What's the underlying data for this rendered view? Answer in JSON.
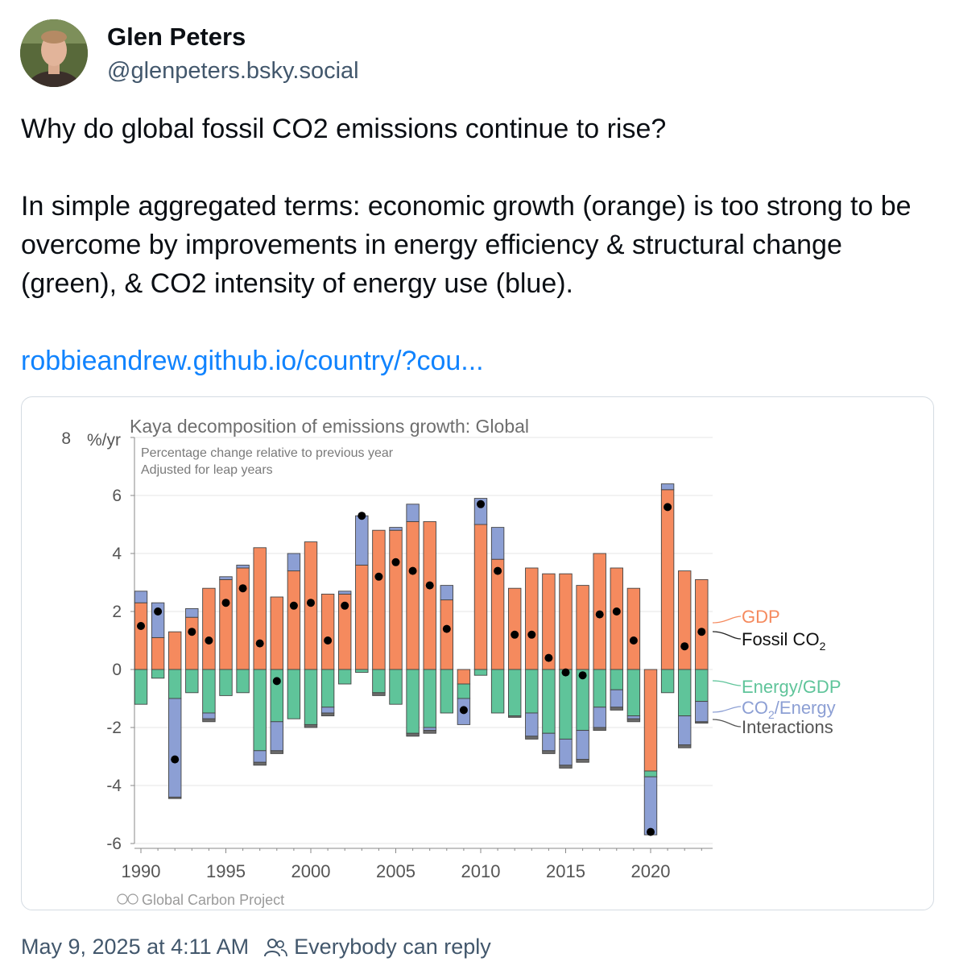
{
  "post": {
    "author": {
      "name": "Glen Peters",
      "handle": "@glenpeters.bsky.social"
    },
    "text_line1": "Why do global fossil CO2 emissions continue to rise?",
    "text_line2": "In simple aggregated terms: economic growth (orange) is too strong to be overcome by improvements in energy efficiency & structural change (green), & CO2 intensity of energy use (blue).",
    "link": "robbieandrew.github.io/country/?cou...",
    "timestamp": "May 9, 2025 at 4:11 AM",
    "reply_setting": "Everybody can reply"
  },
  "colors": {
    "gdp": "#f58a5e",
    "energy_gdp": "#5fc49a",
    "co2_energy": "#8c9fd4",
    "interactions": "#6b6b6b",
    "fossil": "#000000",
    "link": "#1083fe"
  },
  "chart_data": {
    "type": "bar",
    "title": "Kaya decomposition of emissions growth: Global",
    "subtitle1": "Percentage change relative to previous year",
    "subtitle2": "Adjusted for leap years",
    "ylabel": "%/yr",
    "ylim": [
      -6,
      8
    ],
    "yticks": [
      -6,
      -4,
      -2,
      0,
      2,
      4,
      6,
      8
    ],
    "xticks": [
      1990,
      1995,
      2000,
      2005,
      2010,
      2015,
      2020
    ],
    "credit": "Global Carbon Project",
    "legend": {
      "gdp": "GDP",
      "fossil": "Fossil CO",
      "energy_gdp": "Energy/GDP",
      "co2_energy_a": "CO",
      "co2_energy_b": "/Energy",
      "interactions": "Interactions",
      "sub2": "2"
    },
    "years": [
      1990,
      1991,
      1992,
      1993,
      1994,
      1995,
      1996,
      1997,
      1998,
      1999,
      2000,
      2001,
      2002,
      2003,
      2004,
      2005,
      2006,
      2007,
      2008,
      2009,
      2010,
      2011,
      2012,
      2013,
      2014,
      2015,
      2016,
      2017,
      2018,
      2019,
      2020,
      2021,
      2022,
      2023
    ],
    "series": [
      {
        "name": "GDP",
        "values": [
          2.3,
          1.1,
          1.3,
          1.8,
          2.8,
          3.1,
          3.5,
          4.2,
          2.5,
          3.4,
          4.4,
          2.6,
          2.6,
          3.6,
          4.8,
          4.8,
          5.1,
          5.1,
          2.4,
          -0.5,
          5.0,
          3.8,
          2.8,
          3.5,
          3.3,
          3.3,
          2.9,
          4.0,
          3.5,
          2.8,
          -3.5,
          6.2,
          3.4,
          3.1
        ]
      },
      {
        "name": "Energy/GDP",
        "values": [
          -1.2,
          -0.3,
          -1.0,
          -0.8,
          -1.5,
          -0.9,
          -0.8,
          -2.8,
          -1.8,
          -1.7,
          -1.9,
          -1.3,
          -0.5,
          -0.1,
          -0.8,
          -1.2,
          -2.2,
          -2.0,
          -1.5,
          -0.5,
          -0.2,
          -1.5,
          -1.6,
          -1.5,
          -2.2,
          -2.4,
          -2.1,
          -1.3,
          -0.7,
          -1.6,
          -0.2,
          -0.8,
          -1.6,
          -1.1
        ]
      },
      {
        "name": "CO2/Energy",
        "values": [
          0.4,
          1.2,
          -3.4,
          0.3,
          -0.2,
          0.1,
          0.1,
          -0.4,
          -1.0,
          0.6,
          0.0,
          -0.2,
          0.1,
          1.7,
          0.0,
          0.1,
          0.6,
          -0.1,
          0.5,
          -0.9,
          0.9,
          1.1,
          0.0,
          -0.8,
          -0.6,
          -0.9,
          -1.0,
          -0.7,
          -0.6,
          -0.1,
          -2.0,
          0.2,
          -1.0,
          -0.7
        ]
      },
      {
        "name": "Interactions",
        "values": [
          0.0,
          0.0,
          -0.05,
          0.0,
          -0.1,
          0.0,
          0.0,
          -0.1,
          -0.1,
          0.0,
          -0.1,
          -0.1,
          0.0,
          0.0,
          -0.1,
          0.0,
          -0.1,
          -0.1,
          0.0,
          0.0,
          0.0,
          0.0,
          -0.05,
          -0.1,
          -0.1,
          -0.1,
          -0.1,
          -0.1,
          -0.1,
          -0.1,
          0.0,
          0.0,
          -0.1,
          -0.05
        ]
      },
      {
        "name": "Fossil CO2",
        "values": [
          1.5,
          2.0,
          -3.1,
          1.3,
          1.0,
          2.3,
          2.8,
          0.9,
          -0.4,
          2.2,
          2.3,
          1.0,
          2.2,
          5.3,
          3.2,
          3.7,
          3.4,
          2.9,
          1.4,
          -1.4,
          5.7,
          3.4,
          1.2,
          1.2,
          0.4,
          -0.1,
          -0.2,
          1.9,
          2.0,
          1.0,
          -5.6,
          5.6,
          0.8,
          1.3
        ]
      }
    ]
  }
}
